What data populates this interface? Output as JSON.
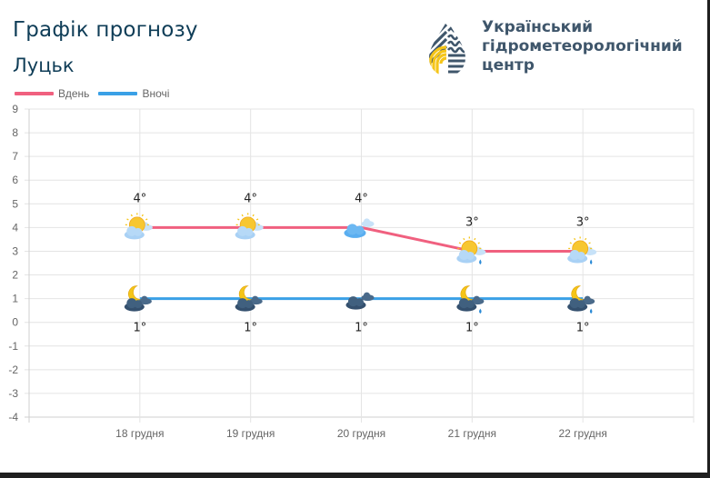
{
  "header": {
    "title": "Графік прогнозу",
    "city": "Луцьк"
  },
  "organization": {
    "line1": "Український",
    "line2": "гідрометеорологічний",
    "line3": "центр",
    "logo_icon": "hydromet-drop-logo-icon",
    "logo_colors": {
      "navy": "#3f566b",
      "yellow": "#f5c518"
    }
  },
  "legend": {
    "items": [
      {
        "label": "Вдень",
        "color": "#f0607f"
      },
      {
        "label": "Вночі",
        "color": "#3aa0e6"
      }
    ]
  },
  "chart_data": {
    "type": "line",
    "title": "Графік прогнозу",
    "subtitle": "Луцьк",
    "categories": [
      "18 грудня",
      "19 грудня",
      "20 грудня",
      "21 грудня",
      "22 грудня"
    ],
    "series": [
      {
        "name": "Вдень",
        "color": "#f0607f",
        "values": [
          4,
          4,
          4,
          3,
          3
        ],
        "labels": [
          "4°",
          "4°",
          "4°",
          "3°",
          "3°"
        ],
        "icons": [
          "partly-cloudy-day-icon",
          "partly-cloudy-day-icon",
          "cloudy-icon",
          "partly-cloudy-day-rain-icon",
          "partly-cloudy-day-rain-icon"
        ]
      },
      {
        "name": "Вночі",
        "color": "#3aa0e6",
        "values": [
          1,
          1,
          1,
          1,
          1
        ],
        "labels": [
          "1°",
          "1°",
          "1°",
          "1°",
          "1°"
        ],
        "icons": [
          "partly-cloudy-night-icon",
          "partly-cloudy-night-icon",
          "overcast-night-icon",
          "partly-cloudy-night-rain-icon",
          "partly-cloudy-night-rain-icon"
        ]
      }
    ],
    "y_ticks": [
      9,
      8,
      7,
      6,
      5,
      4,
      3,
      2,
      1,
      0,
      -1,
      -2,
      -3,
      -4
    ],
    "ylim": [
      -4,
      9
    ],
    "xlabel": "",
    "ylabel": "",
    "grid": true,
    "legend_position": "top-left"
  }
}
